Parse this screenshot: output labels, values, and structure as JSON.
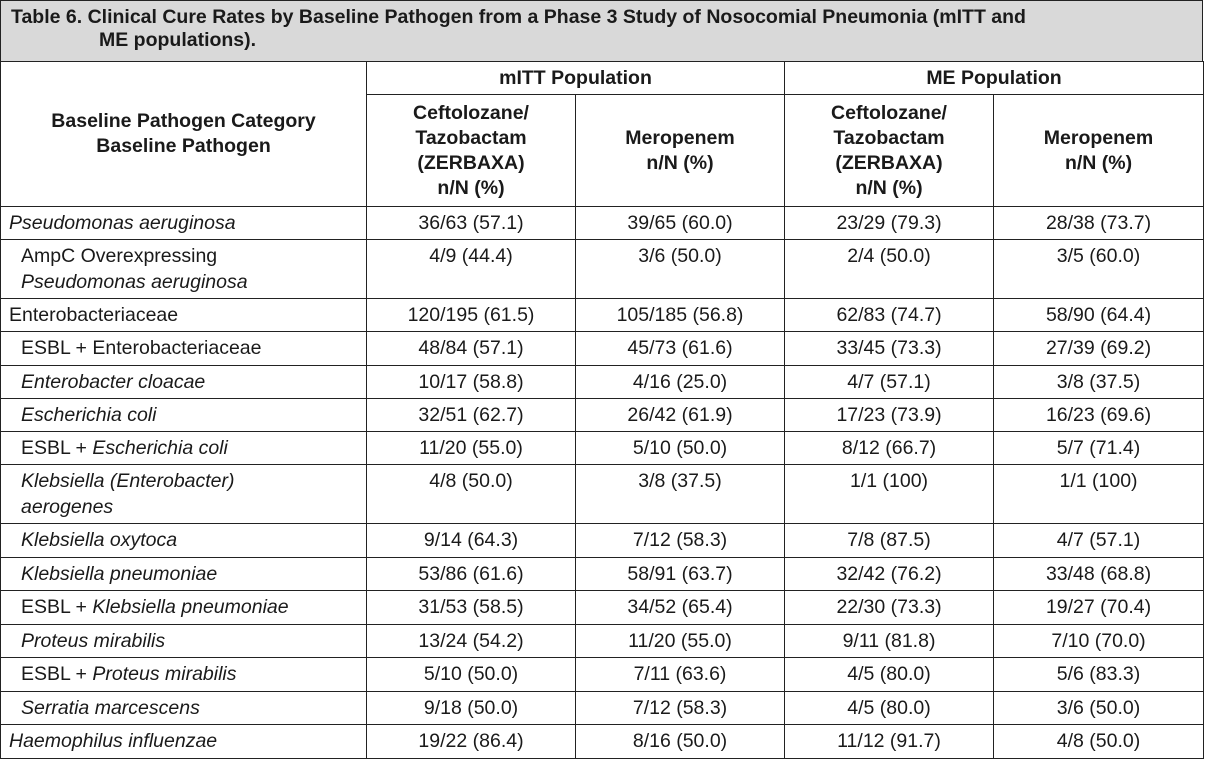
{
  "title_line1": "Table 6. Clinical Cure Rates by Baseline Pathogen from a Phase 3 Study of Nosocomial Pneumonia (mITT and",
  "title_line2": "ME populations).",
  "header": {
    "category_line1": "Baseline Pathogen Category",
    "category_line2": "Baseline Pathogen",
    "group_mitt": "mITT Population",
    "group_me": "ME Population",
    "cz_line1": "Ceftolozane/",
    "cz_line2": "Tazobactam",
    "cz_line3": "(ZERBAXA)",
    "cz_line4": "n/N (%)",
    "mero_line1": "Meropenem",
    "mero_line2": "n/N (%)"
  },
  "rows": [
    {
      "pre": "",
      "ital": "Pseudomonas aeruginosa",
      "ital2": "",
      "values": [
        "36/63 (57.1)",
        "39/65 (60.0)",
        "23/29 (79.3)",
        "28/38 (73.7)"
      ]
    },
    {
      "pre": "AmpC Overexpressing",
      "ital": "",
      "ital2": "Pseudomonas aeruginosa",
      "values": [
        "4/9 (44.4)",
        "3/6 (50.0)",
        "2/4 (50.0)",
        "3/5 (60.0)"
      ]
    },
    {
      "pre": "Enterobacteriaceae",
      "ital": "",
      "ital2": "",
      "values": [
        "120/195 (61.5)",
        "105/185 (56.8)",
        "62/83 (74.7)",
        "58/90 (64.4)"
      ]
    },
    {
      "pre": "ESBL + Enterobacteriaceae",
      "ital": "",
      "ital2": "",
      "values": [
        "48/84 (57.1)",
        "45/73 (61.6)",
        "33/45 (73.3)",
        "27/39 (69.2)"
      ]
    },
    {
      "pre": "",
      "ital": "Enterobacter cloacae",
      "ital2": "",
      "values": [
        "10/17 (58.8)",
        "4/16 (25.0)",
        "4/7 (57.1)",
        "3/8 (37.5)"
      ]
    },
    {
      "pre": "",
      "ital": "Escherichia coli",
      "ital2": "",
      "values": [
        "32/51 (62.7)",
        "26/42 (61.9)",
        "17/23 (73.9)",
        "16/23 (69.6)"
      ]
    },
    {
      "pre": "ESBL + ",
      "ital": "Escherichia coli",
      "ital2": "",
      "values": [
        "11/20 (55.0)",
        "5/10 (50.0)",
        "8/12 (66.7)",
        "5/7 (71.4)"
      ]
    },
    {
      "pre": "",
      "ital": "Klebsiella (Enterobacter)",
      "ital2": "aerogenes",
      "values": [
        "4/8 (50.0)",
        "3/8 (37.5)",
        "1/1 (100)",
        "1/1 (100)"
      ]
    },
    {
      "pre": "",
      "ital": "Klebsiella oxytoca",
      "ital2": "",
      "values": [
        "9/14 (64.3)",
        "7/12 (58.3)",
        "7/8 (87.5)",
        "4/7 (57.1)"
      ]
    },
    {
      "pre": "",
      "ital": "Klebsiella pneumoniae",
      "ital2": "",
      "values": [
        "53/86 (61.6)",
        "58/91 (63.7)",
        "32/42 (76.2)",
        "33/48 (68.8)"
      ]
    },
    {
      "pre": "ESBL + ",
      "ital": "Klebsiella pneumoniae",
      "ital2": "",
      "values": [
        "31/53 (58.5)",
        "34/52 (65.4)",
        "22/30 (73.3)",
        "19/27 (70.4)"
      ]
    },
    {
      "pre": "",
      "ital": "Proteus mirabilis",
      "ital2": "",
      "values": [
        "13/24 (54.2)",
        "11/20 (55.0)",
        "9/11 (81.8)",
        "7/10 (70.0)"
      ]
    },
    {
      "pre": "ESBL + ",
      "ital": "Proteus mirabilis",
      "ital2": "",
      "values": [
        "5/10 (50.0)",
        "7/11 (63.6)",
        "4/5 (80.0)",
        "5/6 (83.3)"
      ]
    },
    {
      "pre": "",
      "ital": "Serratia marcescens",
      "ital2": "",
      "values": [
        "9/18 (50.0)",
        "7/12 (58.3)",
        "4/5 (80.0)",
        "3/6 (50.0)"
      ]
    },
    {
      "pre": "",
      "ital": "Haemophilus influenzae",
      "ital2": "",
      "values": [
        "19/22 (86.4)",
        "8/16 (50.0)",
        "11/12 (91.7)",
        "4/8 (50.0)"
      ]
    }
  ]
}
